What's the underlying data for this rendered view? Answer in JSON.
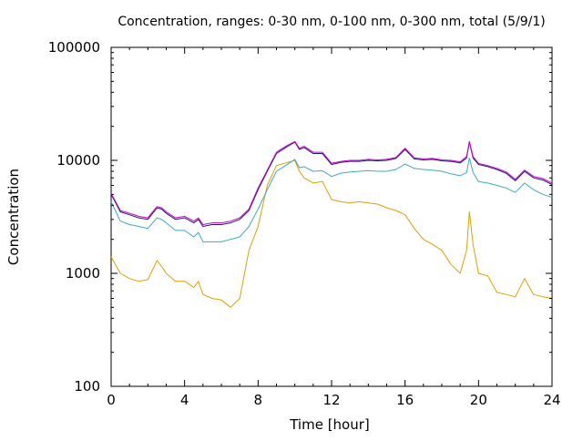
{
  "chart_data": {
    "type": "line",
    "title": "Concentration, ranges: 0-30 nm, 0-100 nm, 0-300 nm, total (5/9/1)",
    "xlabel": "Time [hour]",
    "ylabel": "Concentration",
    "xlim": [
      0,
      24
    ],
    "ylim": [
      100,
      100000
    ],
    "yscale": "log",
    "grid": false,
    "x_ticks": [
      0,
      4,
      8,
      12,
      16,
      20,
      24
    ],
    "x_tick_labels": [
      "0",
      "4",
      "8",
      "12",
      "16",
      "20",
      "24"
    ],
    "y_ticks": [
      100,
      1000,
      10000,
      100000
    ],
    "y_tick_labels": [
      "100",
      "1000",
      "10000",
      "100000"
    ],
    "x": [
      0,
      0.5,
      1,
      1.5,
      2,
      2.5,
      2.75,
      3,
      3.5,
      4,
      4.5,
      4.75,
      5,
      5.5,
      6,
      6.5,
      7,
      7.5,
      8,
      8.5,
      9,
      9.5,
      10,
      10.25,
      10.5,
      11,
      11.5,
      12,
      12.5,
      13,
      13.5,
      14,
      14.5,
      15,
      15.5,
      16,
      16.5,
      17,
      17.5,
      18,
      18.5,
      19,
      19.35,
      19.5,
      19.7,
      20,
      20.5,
      21,
      21.5,
      22,
      22.5,
      23,
      23.5,
      24
    ],
    "series": [
      {
        "color": "#e0a000",
        "values": [
          1400,
          1000,
          900,
          850,
          880,
          1300,
          1150,
          1000,
          850,
          850,
          750,
          850,
          650,
          600,
          580,
          500,
          600,
          1600,
          2600,
          6000,
          9000,
          9500,
          10000,
          8000,
          7000,
          6300,
          6500,
          4500,
          4300,
          4200,
          4300,
          4200,
          4100,
          3800,
          3600,
          3300,
          2500,
          2000,
          1800,
          1600,
          1200,
          1000,
          1600,
          3500,
          1800,
          1000,
          950,
          680,
          650,
          620,
          900,
          650,
          620,
          600
        ]
      },
      {
        "color": "#3da9c9",
        "values": [
          4300,
          2900,
          2700,
          2600,
          2500,
          3100,
          3000,
          2800,
          2400,
          2400,
          2100,
          2300,
          1900,
          1900,
          1900,
          2000,
          2100,
          2600,
          3700,
          5500,
          8000,
          9000,
          10200,
          8600,
          8800,
          8000,
          8100,
          7200,
          7700,
          7900,
          8000,
          8100,
          8000,
          8000,
          8300,
          9300,
          8500,
          8300,
          8200,
          8000,
          7600,
          7300,
          7800,
          10500,
          7800,
          6500,
          6300,
          6000,
          5700,
          5200,
          6300,
          5500,
          5000,
          4700
        ]
      },
      {
        "color": "#1a1a80",
        "values": [
          5000,
          3500,
          3300,
          3100,
          3000,
          3800,
          3700,
          3400,
          3000,
          3100,
          2800,
          3000,
          2600,
          2700,
          2700,
          2800,
          3000,
          3600,
          5500,
          8000,
          11500,
          13000,
          14500,
          12500,
          13000,
          11500,
          11500,
          9200,
          9600,
          9800,
          9800,
          10000,
          9900,
          10000,
          10400,
          12500,
          10300,
          10100,
          10200,
          9900,
          9800,
          9500,
          10500,
          14500,
          10500,
          9200,
          8800,
          8300,
          7700,
          6600,
          8000,
          7000,
          6700,
          6100
        ]
      },
      {
        "color": "#cc00cc",
        "values": [
          5100,
          3600,
          3400,
          3200,
          3100,
          3900,
          3800,
          3500,
          3100,
          3200,
          2900,
          3100,
          2700,
          2800,
          2800,
          2900,
          3100,
          3700,
          5700,
          8200,
          11800,
          13300,
          14700,
          12800,
          13300,
          11800,
          11800,
          9400,
          9800,
          10000,
          10000,
          10200,
          10100,
          10200,
          10600,
          12800,
          10500,
          10300,
          10400,
          10100,
          10000,
          9700,
          10800,
          14700,
          10800,
          9400,
          9000,
          8500,
          7900,
          6800,
          8200,
          7200,
          6900,
          6300
        ]
      }
    ]
  }
}
